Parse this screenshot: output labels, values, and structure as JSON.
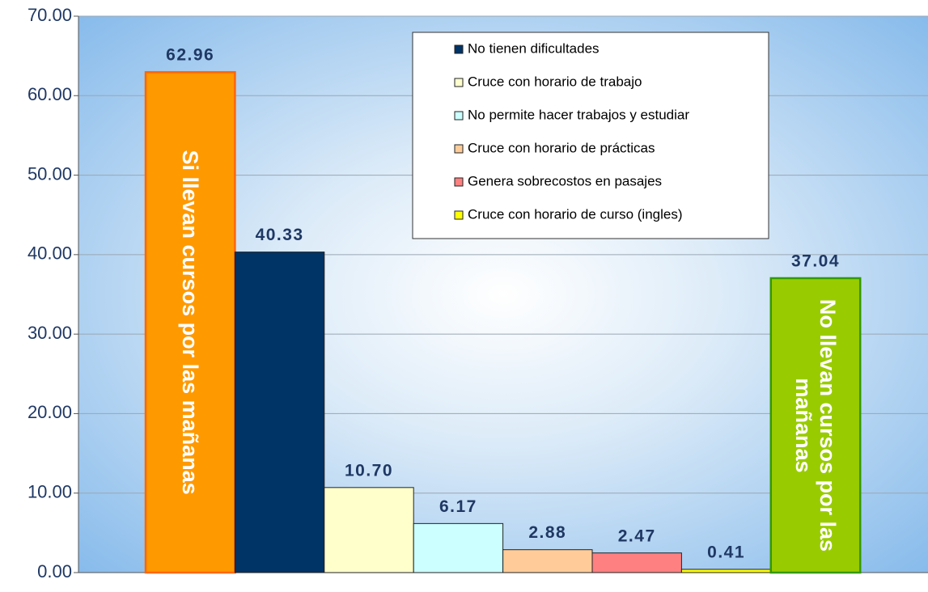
{
  "chart_data": {
    "type": "bar",
    "ylim": [
      0,
      70
    ],
    "yticks": [
      {
        "value": 0,
        "label": "0.00"
      },
      {
        "value": 10,
        "label": "10.00"
      },
      {
        "value": 20,
        "label": "20.00"
      },
      {
        "value": 30,
        "label": "30.00"
      },
      {
        "value": 40,
        "label": "40.00"
      },
      {
        "value": 50,
        "label": "50.00"
      },
      {
        "value": 60,
        "label": "60.00"
      },
      {
        "value": 70,
        "label": "70.00"
      }
    ],
    "grid": true,
    "legend": "top-right",
    "series": [
      {
        "name": "Si llevan cursos por las mañanas",
        "color": "#ff9900",
        "border": "#ff6600",
        "in_legend": false,
        "values": [
          62.96
        ],
        "value_labels": [
          "62.96"
        ]
      },
      {
        "name": "No tienen dificultades",
        "color": "#003366",
        "values": [
          40.33
        ],
        "value_labels": [
          "40.33"
        ]
      },
      {
        "name": "Cruce con horario de trabajo",
        "color": "#ffffcc",
        "values": [
          10.7
        ],
        "value_labels": [
          "10.70"
        ]
      },
      {
        "name": "No permite hacer trabajos y estudiar",
        "color": "#ccffff",
        "values": [
          6.17
        ],
        "value_labels": [
          "6.17"
        ]
      },
      {
        "name": "Cruce con horario de prácticas",
        "color": "#ffcc99",
        "values": [
          2.88
        ],
        "value_labels": [
          "2.88"
        ]
      },
      {
        "name": "Genera sobrecostos en pasajes",
        "color": "#ff8080",
        "values": [
          2.47
        ],
        "value_labels": [
          "2.47"
        ]
      },
      {
        "name": "Cruce con horario de curso (ingles)",
        "color": "#ffff00",
        "values": [
          0.41
        ],
        "value_labels": [
          "0.41"
        ]
      },
      {
        "name": "No llevan cursos por las mañanas",
        "color": "#99cc00",
        "border": "#339900",
        "in_legend": false,
        "values": [
          37.04
        ],
        "value_labels": [
          "37.04"
        ]
      }
    ]
  }
}
